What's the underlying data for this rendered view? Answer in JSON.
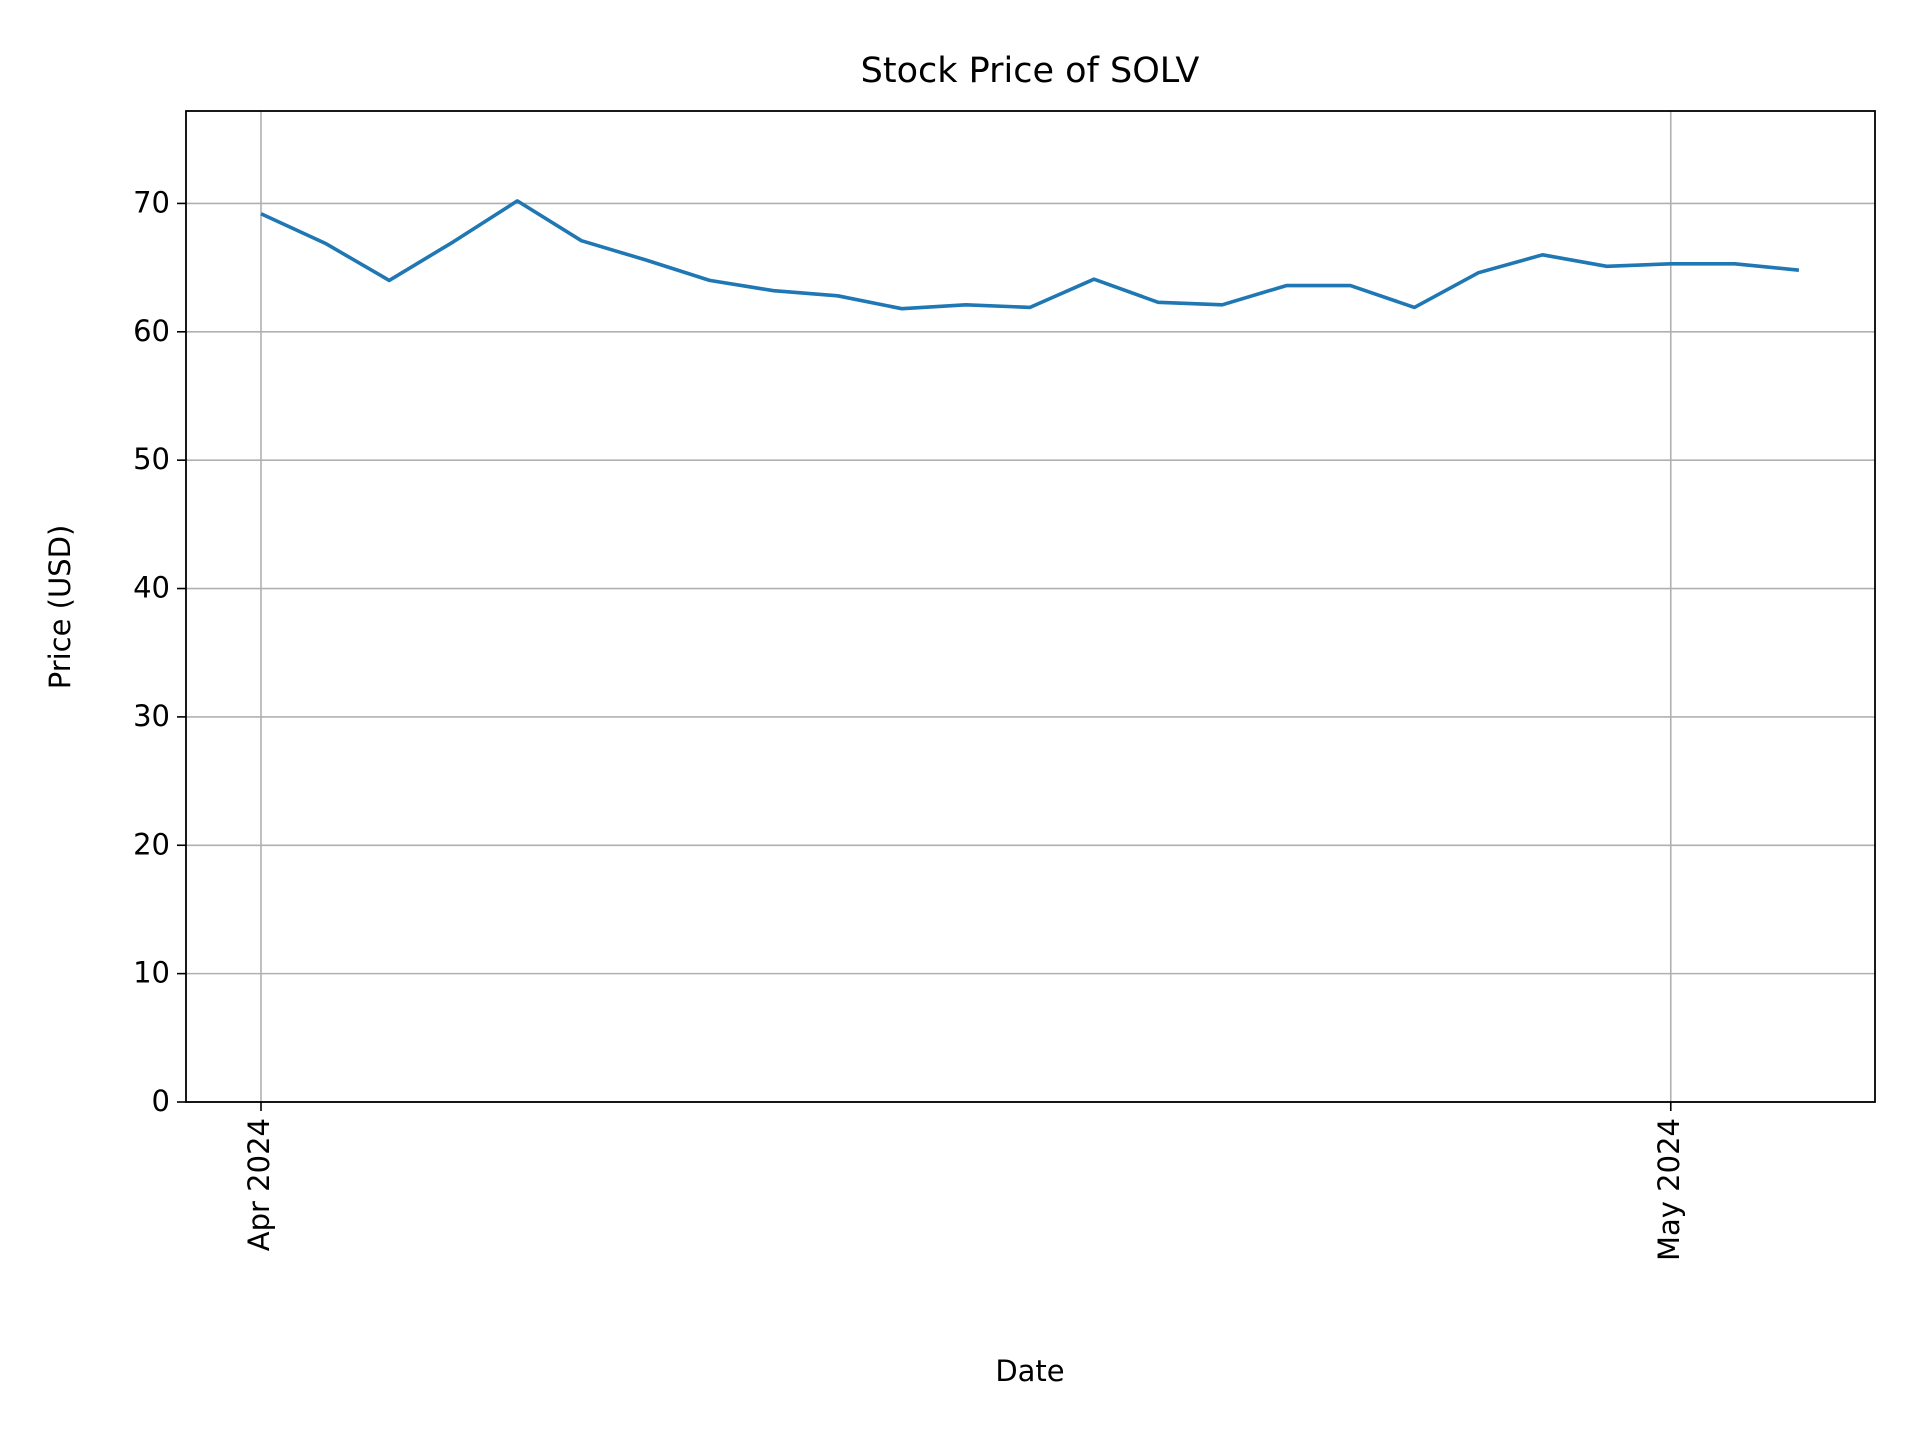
{
  "chart_data": {
    "type": "line",
    "title": "Stock Price of SOLV",
    "xlabel": "Date",
    "ylabel": "Price (USD)",
    "categories": [
      "Apr 2024",
      null,
      null,
      null,
      null,
      null,
      null,
      null,
      null,
      null,
      null,
      null,
      null,
      null,
      null,
      null,
      null,
      null,
      null,
      null,
      null,
      null,
      "May 2024",
      null,
      null
    ],
    "series": [
      {
        "name": "SOLV",
        "color": "#1f77b4",
        "values": [
          69.2,
          66.9,
          64.0,
          67.0,
          70.2,
          67.1,
          65.6,
          64.0,
          63.2,
          62.8,
          61.8,
          62.1,
          61.9,
          64.1,
          62.3,
          62.1,
          63.6,
          63.6,
          61.9,
          64.6,
          66.0,
          65.1,
          65.3,
          65.3,
          64.8
        ]
      }
    ],
    "ylim": [
      0,
      77.2
    ],
    "yticks": [
      0,
      10,
      20,
      30,
      40,
      50,
      60,
      70
    ],
    "grid": true
  }
}
